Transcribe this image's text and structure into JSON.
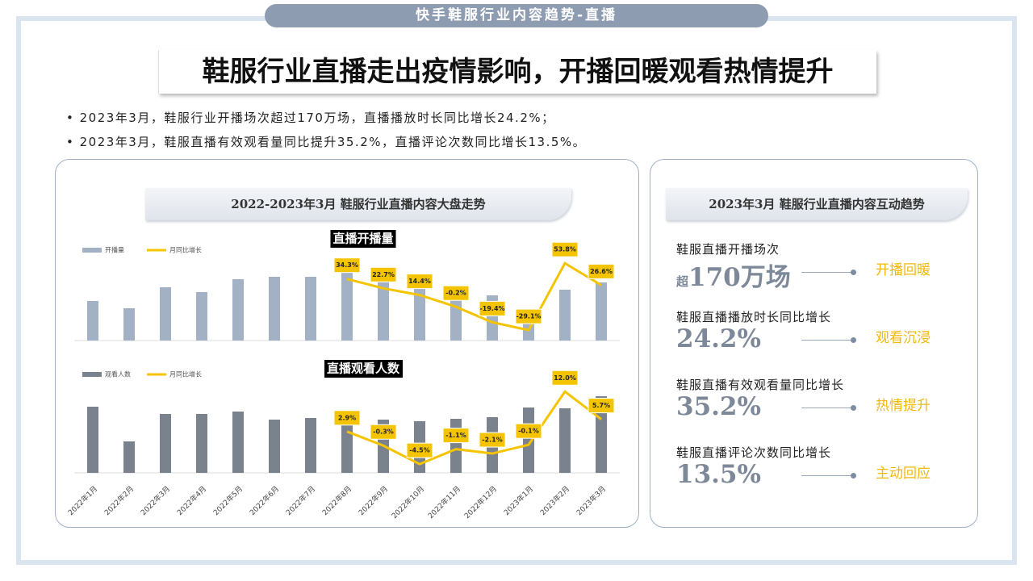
{
  "header": {
    "banner": "快手鞋服行业内容趋势-直播",
    "title": "鞋服行业直播走出疫情影响，开播回暖观看热情提升",
    "bullets": [
      "2023年3月，鞋服行业开播场次超过170万场，直播播放时长同比增长24.2%；",
      "2023年3月，鞋服直播有效观看量同比提升35.2%，直播评论次数同比增长13.5%。"
    ]
  },
  "left_panel": {
    "title": "2022-2023年3月 鞋服行业直播内容大盘走势"
  },
  "chart_data": [
    {
      "type": "bar_line",
      "title": "直播开播量",
      "values": [
        49,
        40,
        66,
        60,
        76,
        79,
        79,
        97,
        82,
        67,
        65,
        56,
        27,
        63,
        72
      ],
      "ylim": [
        0,
        100
      ],
      "series": [
        {
          "name": "开播量",
          "color": "#a3b1c4"
        },
        {
          "name": "月同比增长",
          "color": "#f5c400",
          "axis": "y2",
          "values": [
            null,
            null,
            null,
            null,
            null,
            null,
            null,
            34.3,
            22.7,
            14.4,
            -0.2,
            -19.4,
            -29.1,
            53.8,
            26.6
          ],
          "value_labels": [
            null,
            null,
            null,
            null,
            null,
            null,
            null,
            "34.3%",
            "22.7%",
            "14.4%",
            "-0.2%",
            "-19.4%",
            "-29.1%",
            "53.8%",
            "26.6%"
          ]
        }
      ],
      "y2lim": [
        -40,
        70
      ]
    },
    {
      "type": "bar_line",
      "title": "直播观看人数",
      "categories": [
        "2022年1月",
        "2022年2月",
        "2022年3月",
        "2022年4月",
        "2022年5月",
        "2022年6月",
        "2022年7月",
        "2022年8月",
        "2022年9月",
        "2022年10月",
        "2022年11月",
        "2022年12月",
        "2023年1月",
        "2023年2月",
        "2023年3月"
      ],
      "values": [
        82,
        39,
        73,
        73,
        76,
        66,
        68,
        77,
        66,
        64,
        67,
        69,
        81,
        80,
        95
      ],
      "ylim": [
        0,
        100
      ],
      "series": [
        {
          "name": "观看人数",
          "color": "#7a828d"
        },
        {
          "name": "月同比增长",
          "color": "#f5c400",
          "axis": "y2",
          "values": [
            null,
            null,
            null,
            null,
            null,
            null,
            null,
            2.9,
            -0.3,
            -4.5,
            -1.1,
            -2.1,
            -0.1,
            12.0,
            5.7
          ],
          "value_labels": [
            null,
            null,
            null,
            null,
            null,
            null,
            null,
            "2.9%",
            "-0.3%",
            "-4.5%",
            "-1.1%",
            "-2.1%",
            "-0.1%",
            "12.0%",
            "5.7%"
          ]
        }
      ],
      "y2lim": [
        -6.5,
        13.7
      ]
    }
  ],
  "right_panel": {
    "title": "2023年3月 鞋服行业直播内容互动趋势",
    "items": [
      {
        "label": "鞋服直播开播场次",
        "prefix": "超",
        "value": "170万场",
        "tag": "开播回暖"
      },
      {
        "label": "鞋服直播播放时长同比增长",
        "value": "24.2%",
        "tag": "观看沉浸"
      },
      {
        "label": "鞋服直播有效观看量同比增长",
        "value": "35.2%",
        "tag": "热情提升"
      },
      {
        "label": "鞋服直播评论次数同比增长",
        "value": "13.5%",
        "tag": "主动回应"
      }
    ]
  }
}
